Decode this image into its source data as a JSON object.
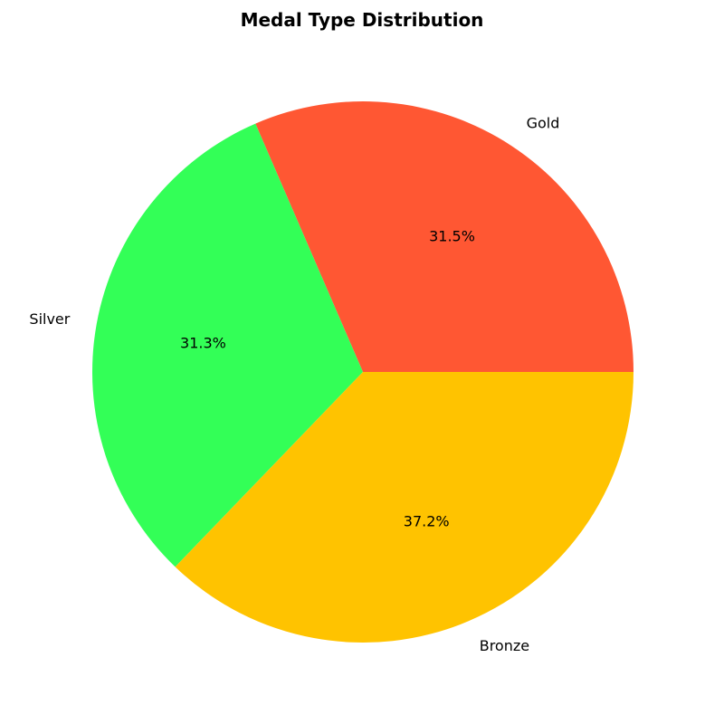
{
  "chart_data": {
    "type": "pie",
    "title": "Medal Type Distribution",
    "slices": [
      {
        "label": "Gold",
        "value": 31.5,
        "pct_label": "31.5%",
        "color": "#FF5733"
      },
      {
        "label": "Silver",
        "value": 31.3,
        "pct_label": "31.3%",
        "color": "#33FF57"
      },
      {
        "label": "Bronze",
        "value": 37.2,
        "pct_label": "37.2%",
        "color": "#FFC300"
      }
    ],
    "start_angle_deg": 0,
    "direction": "counterclockwise",
    "legend": "none"
  }
}
